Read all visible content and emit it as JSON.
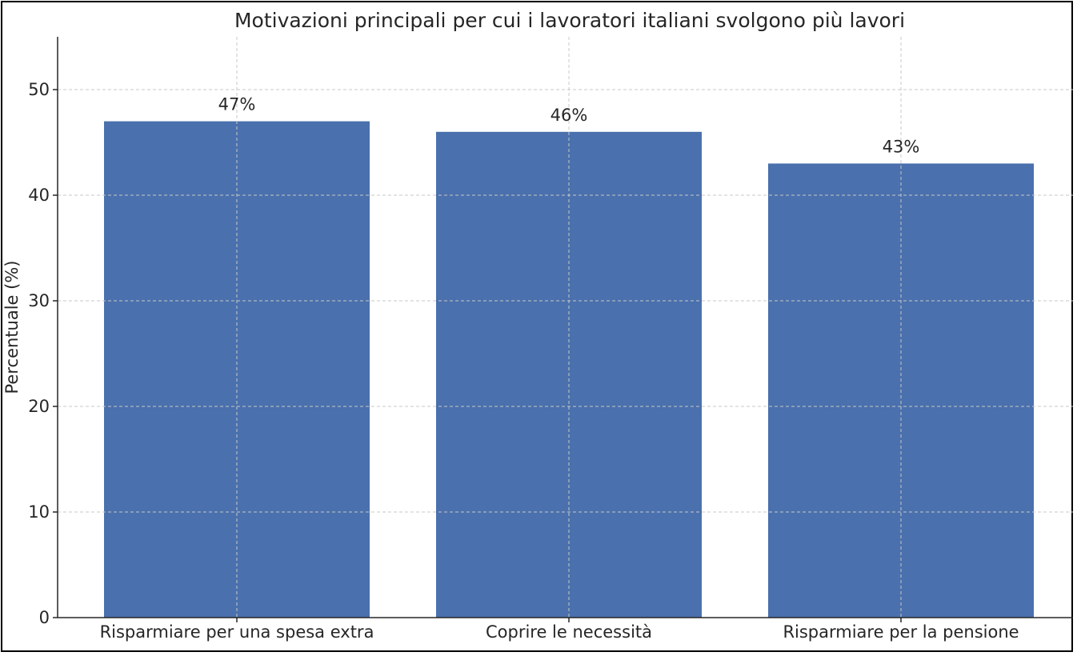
{
  "chart_data": {
    "type": "bar",
    "title": "Motivazioni principali per cui i lavoratori italiani svolgono più lavori",
    "xlabel": "",
    "ylabel": "Percentuale (%)",
    "categories": [
      "Risparmiare per una spesa extra",
      "Coprire le necessità",
      "Risparmiare per la pensione"
    ],
    "values": [
      47,
      46,
      43
    ],
    "data_labels": [
      "47%",
      "46%",
      "43%"
    ],
    "ylim": [
      0,
      55
    ],
    "yticks": [
      0,
      10,
      20,
      30,
      40,
      50
    ],
    "grid": true,
    "bar_color": "#4a70ad"
  }
}
